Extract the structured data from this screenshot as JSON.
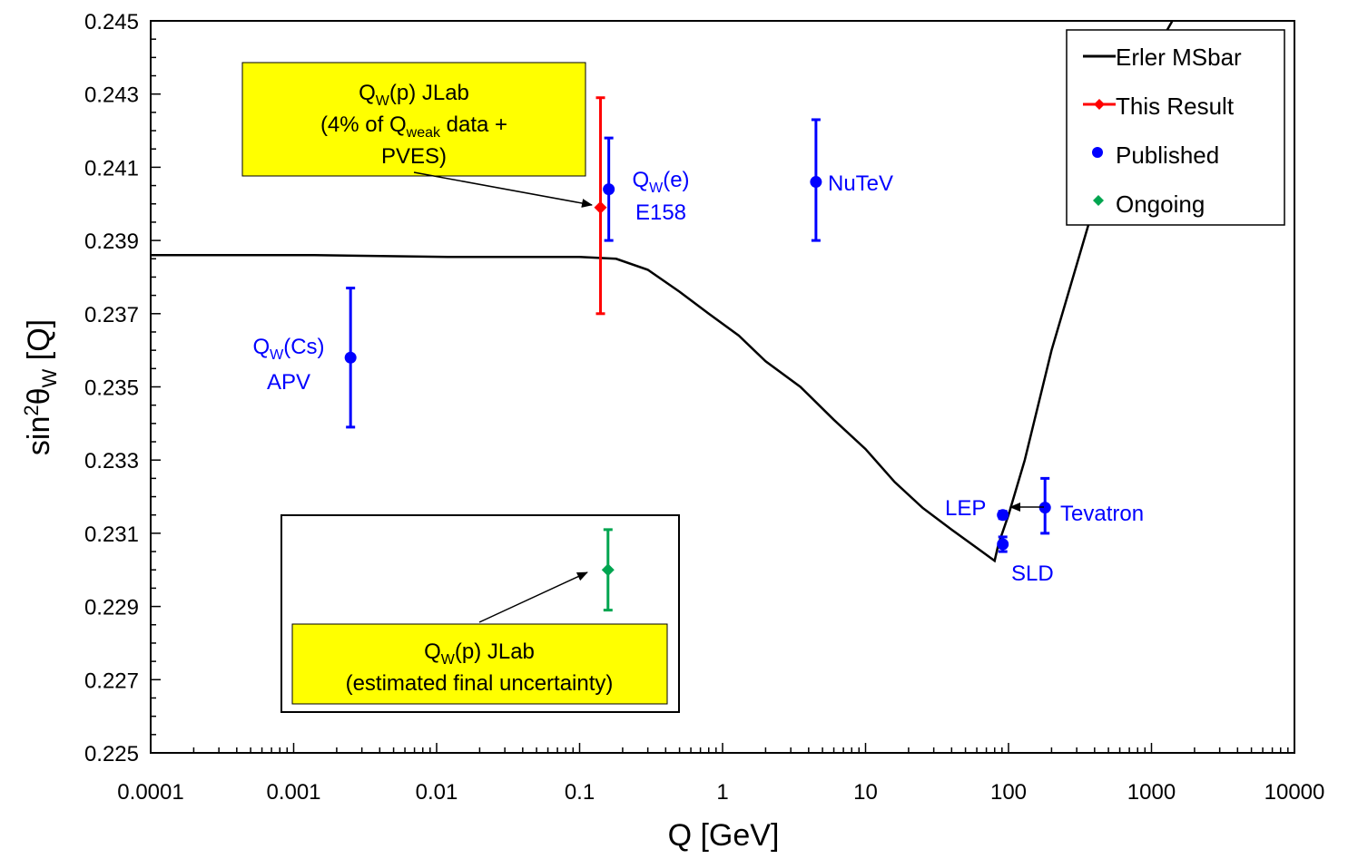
{
  "chart_data": {
    "type": "scatter",
    "x_scale": "log",
    "xlabel": "Q [GeV]",
    "ylabel_main": "sin",
    "ylabel_sup": "2",
    "ylabel_theta": "θ",
    "ylabel_sub": "W",
    "ylabel_tail": " [Q]",
    "xlim": [
      0.0001,
      10000
    ],
    "ylim": [
      0.225,
      0.245
    ],
    "x_ticks": [
      {
        "value": 0.0001,
        "label": "0.0001"
      },
      {
        "value": 0.001,
        "label": "0.001"
      },
      {
        "value": 0.01,
        "label": "0.01"
      },
      {
        "value": 0.1,
        "label": "0.1"
      },
      {
        "value": 1,
        "label": "1"
      },
      {
        "value": 10,
        "label": "10"
      },
      {
        "value": 100,
        "label": "100"
      },
      {
        "value": 1000,
        "label": "1000"
      },
      {
        "value": 10000,
        "label": "10000"
      }
    ],
    "y_ticks": [
      {
        "value": 0.225,
        "label": "0.225"
      },
      {
        "value": 0.227,
        "label": "0.227"
      },
      {
        "value": 0.229,
        "label": "0.229"
      },
      {
        "value": 0.231,
        "label": "0.231"
      },
      {
        "value": 0.233,
        "label": "0.233"
      },
      {
        "value": 0.235,
        "label": "0.235"
      },
      {
        "value": 0.237,
        "label": "0.237"
      },
      {
        "value": 0.239,
        "label": "0.239"
      },
      {
        "value": 0.241,
        "label": "0.241"
      },
      {
        "value": 0.243,
        "label": "0.243"
      },
      {
        "value": 0.245,
        "label": "0.245"
      }
    ],
    "colors": {
      "theory": "#000000",
      "this_result": "#ff0000",
      "published": "#0000ff",
      "ongoing": "#00a550",
      "annotation_box": "#ffff00"
    },
    "legend": {
      "placement": "top-right",
      "entries": [
        {
          "label": "Erler MSbar",
          "marker": "line",
          "color": "#000000"
        },
        {
          "label": "This Result",
          "marker": "line-diamond",
          "color": "#ff0000"
        },
        {
          "label": "Published",
          "marker": "circle",
          "color": "#0000ff"
        },
        {
          "label": "Ongoing",
          "marker": "diamond",
          "color": "#00a550"
        }
      ]
    },
    "theory_curve": {
      "name": "Erler MSbar",
      "points": [
        [
          0.0001,
          0.2386
        ],
        [
          0.0014,
          0.2386
        ],
        [
          0.012,
          0.23855
        ],
        [
          0.1,
          0.23855
        ],
        [
          0.18,
          0.2385
        ],
        [
          0.3,
          0.2382
        ],
        [
          0.5,
          0.2376
        ],
        [
          0.8,
          0.237
        ],
        [
          1.3,
          0.2364
        ],
        [
          2.0,
          0.2357
        ],
        [
          3.5,
          0.235
        ],
        [
          6.0,
          0.2341
        ],
        [
          10,
          0.2333
        ],
        [
          16,
          0.2324
        ],
        [
          25,
          0.2317
        ],
        [
          40,
          0.2311
        ],
        [
          60,
          0.2306
        ],
        [
          80,
          0.23025
        ],
        [
          85,
          0.2307
        ],
        [
          100,
          0.2315
        ],
        [
          130,
          0.233
        ],
        [
          200,
          0.236
        ],
        [
          400,
          0.24
        ],
        [
          1000,
          0.244
        ],
        [
          1400,
          0.2452
        ]
      ]
    },
    "series": [
      {
        "name": "This Result",
        "marker": "diamond",
        "points": [
          {
            "x": 0.14,
            "y": 0.2399,
            "yerr_low": 0.0029,
            "yerr_high": 0.003,
            "label": "",
            "id": "this-result"
          }
        ]
      },
      {
        "name": "Published",
        "marker": "circle",
        "points": [
          {
            "x": 0.0025,
            "y": 0.2358,
            "yerr_low": 0.0019,
            "yerr_high": 0.0019,
            "id": "cs-apv"
          },
          {
            "x": 0.16,
            "y": 0.2404,
            "yerr_low": 0.0014,
            "yerr_high": 0.0014,
            "id": "e158"
          },
          {
            "x": 4.5,
            "y": 0.2406,
            "yerr_low": 0.0016,
            "yerr_high": 0.0017,
            "id": "nutev"
          },
          {
            "x": 91.2,
            "y": 0.2315,
            "yerr_low": 0.0001,
            "yerr_high": 0.0001,
            "id": "lep"
          },
          {
            "x": 91.2,
            "y": 0.2307,
            "yerr_low": 0.0002,
            "yerr_high": 0.0002,
            "id": "sld"
          },
          {
            "x": 180,
            "y": 0.2317,
            "yerr_low": 0.0007,
            "yerr_high": 0.0008,
            "id": "tevatron"
          }
        ]
      },
      {
        "name": "Ongoing",
        "marker": "diamond",
        "points": [
          {
            "x": 0.158,
            "y": 0.23,
            "yerr_low": 0.0011,
            "yerr_high": 0.0011,
            "id": "ongoing"
          }
        ]
      }
    ],
    "point_labels": {
      "cs_main": "Q",
      "cs_sub": "W",
      "cs_tail": "(Cs)",
      "cs_line2": "APV",
      "e_main": "Q",
      "e_sub": "W",
      "e_tail": "(e)",
      "e_line2": "E158",
      "nutev": "NuTeV",
      "lep": "LEP",
      "sld": "SLD",
      "tevatron": "Tevatron"
    },
    "annotations": {
      "upper_box": {
        "line1_main": "Q",
        "line1_sub": "W",
        "line1_tail": "(p) JLab",
        "line2_pre": "(4% of Q",
        "line2_sub": "weak",
        "line2_tail": " data +",
        "line3": "PVES)"
      },
      "lower_box": {
        "line1_main": "Q",
        "line1_sub": "W",
        "line1_tail": "(p) JLab",
        "line2": "(estimated final uncertainty)"
      }
    }
  }
}
